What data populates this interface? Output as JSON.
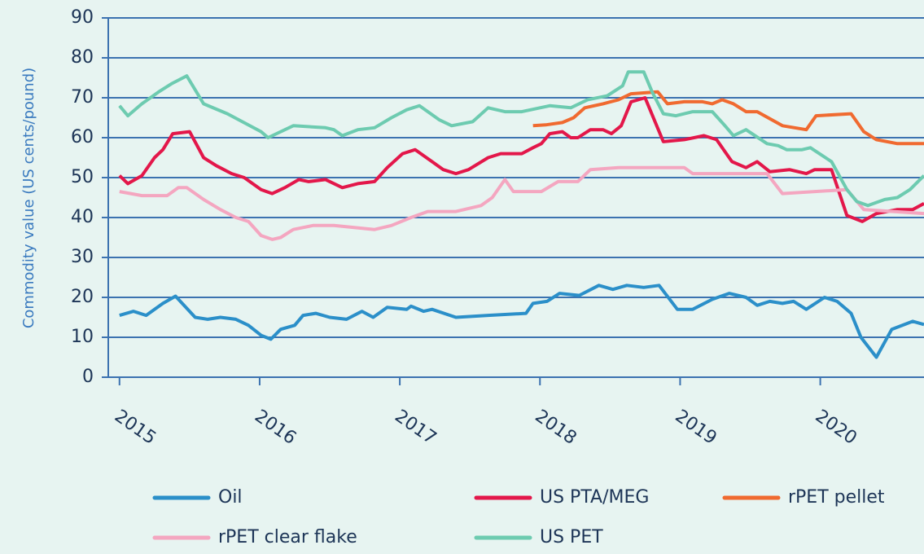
{
  "chart_data": {
    "type": "line",
    "y_label": "Commodity value (US cents/pound)",
    "xlim": [
      2014.92,
      2020.74
    ],
    "xticks": [
      2015,
      2016,
      2017,
      2018,
      2019,
      2020
    ],
    "ylim": [
      0,
      90
    ],
    "yticks": [
      0,
      10,
      20,
      30,
      40,
      50,
      60,
      70,
      80,
      90
    ],
    "grid": true,
    "legend": "bottom",
    "series": [
      {
        "name": "Oil",
        "color": "#2b8fc9",
        "x": [
          2015.0,
          2015.1,
          2015.19,
          2015.31,
          2015.4,
          2015.54,
          2015.63,
          2015.72,
          2015.83,
          2015.92,
          2016.01,
          2016.08,
          2016.15,
          2016.25,
          2016.31,
          2016.4,
          2016.5,
          2016.62,
          2016.73,
          2016.81,
          2016.91,
          2017.05,
          2017.08,
          2017.17,
          2017.23,
          2017.4,
          2017.63,
          2017.9,
          2017.95,
          2018.05,
          2018.14,
          2018.28,
          2018.42,
          2018.52,
          2018.62,
          2018.74,
          2018.85,
          2018.98,
          2019.09,
          2019.23,
          2019.35,
          2019.47,
          2019.55,
          2019.64,
          2019.73,
          2019.81,
          2019.9,
          2020.03,
          2020.12,
          2020.22,
          2020.29,
          2020.4,
          2020.51,
          2020.66,
          2020.74
        ],
        "values": [
          15.5,
          16.5,
          15.5,
          18.5,
          20.3,
          15,
          14.5,
          15,
          14.5,
          13,
          10.5,
          9.5,
          12,
          13,
          15.5,
          16,
          15,
          14.5,
          16.5,
          15,
          17.5,
          17,
          17.8,
          16.5,
          17,
          15,
          15.5,
          16,
          18.5,
          19,
          21,
          20.5,
          23,
          22,
          23,
          22.5,
          23,
          17,
          17,
          19.5,
          21,
          20,
          18,
          19,
          18.5,
          19,
          17,
          20,
          19,
          16,
          10,
          5,
          12,
          14,
          13.2
        ]
      },
      {
        "name": "US PTA/MEG",
        "color": "#e3174a",
        "x": [
          2015.0,
          2015.06,
          2015.16,
          2015.25,
          2015.31,
          2015.38,
          2015.5,
          2015.6,
          2015.69,
          2015.8,
          2015.89,
          2016.01,
          2016.09,
          2016.18,
          2016.28,
          2016.35,
          2016.47,
          2016.59,
          2016.7,
          2016.82,
          2016.91,
          2017.02,
          2017.11,
          2017.23,
          2017.31,
          2017.4,
          2017.49,
          2017.63,
          2017.72,
          2017.87,
          2017.95,
          2018.01,
          2018.07,
          2018.16,
          2018.22,
          2018.27,
          2018.36,
          2018.45,
          2018.51,
          2018.58,
          2018.65,
          2018.75,
          2018.88,
          2019.03,
          2019.17,
          2019.26,
          2019.37,
          2019.47,
          2019.55,
          2019.64,
          2019.78,
          2019.9,
          2019.96,
          2020.08,
          2020.19,
          2020.3,
          2020.4,
          2020.55,
          2020.66,
          2020.74
        ],
        "values": [
          50.5,
          48.5,
          50.5,
          55,
          57,
          61,
          61.5,
          55,
          53,
          51,
          50,
          47,
          46,
          47.5,
          49.5,
          49,
          49.5,
          47.5,
          48.5,
          49,
          52.5,
          56,
          57,
          54,
          52,
          51,
          52,
          55,
          56,
          56,
          57.5,
          58.5,
          61,
          61.5,
          60,
          60,
          62,
          62,
          61,
          63,
          69,
          70,
          59,
          59.5,
          60.5,
          59.5,
          54,
          52.5,
          54,
          51.5,
          52,
          51,
          52,
          52,
          40.5,
          39,
          41,
          42,
          42,
          43.5
        ]
      },
      {
        "name": "rPET pellet",
        "color": "#f06a30",
        "x": [
          2017.95,
          2018.04,
          2018.16,
          2018.24,
          2018.32,
          2018.45,
          2018.56,
          2018.65,
          2018.84,
          2018.91,
          2019.03,
          2019.16,
          2019.23,
          2019.3,
          2019.38,
          2019.47,
          2019.55,
          2019.73,
          2019.9,
          2019.97,
          2020.22,
          2020.31,
          2020.4,
          2020.55,
          2020.74
        ],
        "values": [
          63,
          63.2,
          63.8,
          65,
          67.5,
          68.5,
          69.5,
          71,
          71.5,
          68.5,
          69,
          69,
          68.5,
          69.5,
          68.5,
          66.5,
          66.5,
          63,
          62,
          65.5,
          66,
          61.5,
          59.5,
          58.5,
          58.5
        ]
      },
      {
        "name": "rPET clear flake",
        "color": "#f4a6c0",
        "x": [
          2015.0,
          2015.16,
          2015.34,
          2015.42,
          2015.48,
          2015.6,
          2015.72,
          2015.83,
          2015.92,
          2016.01,
          2016.09,
          2016.15,
          2016.24,
          2016.38,
          2016.53,
          2016.82,
          2016.94,
          2017.08,
          2017.2,
          2017.31,
          2017.4,
          2017.58,
          2017.66,
          2017.75,
          2017.81,
          2018.01,
          2018.13,
          2018.27,
          2018.36,
          2018.56,
          2018.91,
          2019.03,
          2019.09,
          2019.62,
          2019.73,
          2020.19,
          2020.31,
          2020.74
        ],
        "values": [
          46.5,
          45.5,
          45.5,
          47.5,
          47.5,
          44.5,
          42,
          40,
          39,
          35.5,
          34.5,
          35,
          37,
          38,
          38,
          37,
          38,
          40,
          41.5,
          41.5,
          41.5,
          43,
          45,
          49.5,
          46.5,
          46.5,
          49,
          49,
          52,
          52.5,
          52.5,
          52.5,
          51,
          51,
          46,
          47,
          42,
          41
        ]
      },
      {
        "name": "US PET",
        "color": "#6dcbb0",
        "x": [
          2015.0,
          2015.06,
          2015.16,
          2015.28,
          2015.37,
          2015.48,
          2015.6,
          2015.77,
          2016.01,
          2016.06,
          2016.24,
          2016.47,
          2016.53,
          2016.59,
          2016.7,
          2016.82,
          2016.94,
          2017.05,
          2017.14,
          2017.28,
          2017.37,
          2017.52,
          2017.63,
          2017.75,
          2017.87,
          2018.07,
          2018.22,
          2018.34,
          2018.48,
          2018.59,
          2018.63,
          2018.74,
          2018.8,
          2018.88,
          2018.97,
          2019.09,
          2019.23,
          2019.32,
          2019.38,
          2019.47,
          2019.62,
          2019.7,
          2019.76,
          2019.87,
          2019.93,
          2020.08,
          2020.19,
          2020.26,
          2020.34,
          2020.46,
          2020.55,
          2020.64,
          2020.74
        ],
        "values": [
          68,
          65.5,
          68.5,
          71.5,
          73.5,
          75.5,
          68.5,
          66,
          61.5,
          60,
          63,
          62.5,
          62,
          60.5,
          62,
          62.5,
          65,
          67,
          68,
          64.5,
          63,
          64,
          67.5,
          66.5,
          66.5,
          68,
          67.5,
          69.5,
          70.5,
          73,
          76.5,
          76.5,
          71.5,
          66,
          65.5,
          66.5,
          66.5,
          63,
          60.5,
          62,
          58.5,
          58,
          57,
          57,
          57.5,
          54,
          47,
          44,
          43,
          44.5,
          45,
          47,
          50.5
        ]
      }
    ]
  }
}
